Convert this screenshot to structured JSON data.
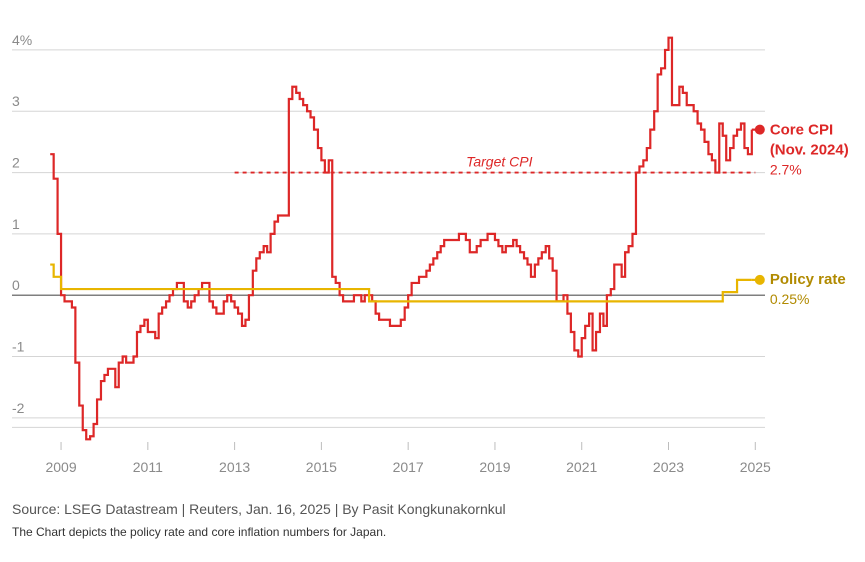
{
  "chart_data": {
    "type": "line",
    "title": "",
    "xlabel": "",
    "ylabel": "",
    "xlim": [
      2008.1,
      2025.8
    ],
    "ylim": [
      -2.5,
      4.25
    ],
    "y_ticks": [
      {
        "value": 4,
        "label": "4%"
      },
      {
        "value": 3,
        "label": "3"
      },
      {
        "value": 2,
        "label": "2"
      },
      {
        "value": 1,
        "label": "1"
      },
      {
        "value": 0,
        "label": "0"
      },
      {
        "value": -1,
        "label": "-1"
      },
      {
        "value": -2,
        "label": "-2"
      }
    ],
    "x_ticks": [
      {
        "value": 2009,
        "label": "2009"
      },
      {
        "value": 2011,
        "label": "2011"
      },
      {
        "value": 2013,
        "label": "2013"
      },
      {
        "value": 2015,
        "label": "2015"
      },
      {
        "value": 2017,
        "label": "2017"
      },
      {
        "value": 2019,
        "label": "2019"
      },
      {
        "value": 2021,
        "label": "2021"
      },
      {
        "value": 2023,
        "label": "2023"
      },
      {
        "value": 2025,
        "label": "2025"
      }
    ],
    "grid": true,
    "target": {
      "value": 2,
      "label": "Target CPI",
      "x_start": 2013.0,
      "x_end": 2025.0,
      "color": "#dd2727"
    },
    "series": [
      {
        "name": "Core CPI",
        "color": "#dd2727",
        "end_label": "Core CPI",
        "end_label_sub": "(Nov. 2024)",
        "end_value_label": "2.7%",
        "points": [
          [
            2008.75,
            2.3
          ],
          [
            2008.83,
            1.9
          ],
          [
            2008.92,
            1.0
          ],
          [
            2009.0,
            0.0
          ],
          [
            2009.08,
            -0.1
          ],
          [
            2009.25,
            -0.2
          ],
          [
            2009.33,
            -1.1
          ],
          [
            2009.42,
            -1.8
          ],
          [
            2009.5,
            -2.2
          ],
          [
            2009.58,
            -2.35
          ],
          [
            2009.67,
            -2.3
          ],
          [
            2009.75,
            -2.1
          ],
          [
            2009.83,
            -1.7
          ],
          [
            2009.92,
            -1.4
          ],
          [
            2010.0,
            -1.3
          ],
          [
            2010.08,
            -1.2
          ],
          [
            2010.25,
            -1.5
          ],
          [
            2010.33,
            -1.1
          ],
          [
            2010.42,
            -1.0
          ],
          [
            2010.5,
            -1.1
          ],
          [
            2010.67,
            -1.0
          ],
          [
            2010.75,
            -0.6
          ],
          [
            2010.83,
            -0.5
          ],
          [
            2010.92,
            -0.4
          ],
          [
            2011.0,
            -0.6
          ],
          [
            2011.17,
            -0.7
          ],
          [
            2011.25,
            -0.3
          ],
          [
            2011.33,
            -0.2
          ],
          [
            2011.42,
            -0.1
          ],
          [
            2011.5,
            0.0
          ],
          [
            2011.58,
            0.1
          ],
          [
            2011.67,
            0.2
          ],
          [
            2011.83,
            -0.1
          ],
          [
            2011.92,
            -0.2
          ],
          [
            2012.0,
            -0.1
          ],
          [
            2012.08,
            0.0
          ],
          [
            2012.17,
            0.1
          ],
          [
            2012.25,
            0.2
          ],
          [
            2012.42,
            -0.1
          ],
          [
            2012.5,
            -0.2
          ],
          [
            2012.58,
            -0.3
          ],
          [
            2012.75,
            -0.1
          ],
          [
            2012.83,
            0.0
          ],
          [
            2012.92,
            -0.1
          ],
          [
            2013.0,
            -0.2
          ],
          [
            2013.08,
            -0.3
          ],
          [
            2013.17,
            -0.5
          ],
          [
            2013.25,
            -0.4
          ],
          [
            2013.33,
            0.0
          ],
          [
            2013.42,
            0.4
          ],
          [
            2013.5,
            0.6
          ],
          [
            2013.58,
            0.7
          ],
          [
            2013.67,
            0.8
          ],
          [
            2013.75,
            0.7
          ],
          [
            2013.83,
            1.0
          ],
          [
            2013.92,
            1.2
          ],
          [
            2014.0,
            1.3
          ],
          [
            2014.08,
            1.3
          ],
          [
            2014.25,
            3.2
          ],
          [
            2014.33,
            3.4
          ],
          [
            2014.42,
            3.3
          ],
          [
            2014.5,
            3.2
          ],
          [
            2014.58,
            3.1
          ],
          [
            2014.67,
            3.0
          ],
          [
            2014.75,
            2.9
          ],
          [
            2014.83,
            2.7
          ],
          [
            2014.92,
            2.4
          ],
          [
            2015.0,
            2.2
          ],
          [
            2015.08,
            2.0
          ],
          [
            2015.17,
            2.2
          ],
          [
            2015.25,
            0.3
          ],
          [
            2015.33,
            0.2
          ],
          [
            2015.42,
            0.0
          ],
          [
            2015.5,
            -0.1
          ],
          [
            2015.75,
            0.0
          ],
          [
            2015.92,
            -0.1
          ],
          [
            2016.0,
            0.0
          ],
          [
            2016.17,
            -0.1
          ],
          [
            2016.25,
            -0.3
          ],
          [
            2016.33,
            -0.4
          ],
          [
            2016.58,
            -0.5
          ],
          [
            2016.83,
            -0.4
          ],
          [
            2016.92,
            -0.2
          ],
          [
            2017.0,
            0.0
          ],
          [
            2017.08,
            0.2
          ],
          [
            2017.25,
            0.3
          ],
          [
            2017.42,
            0.4
          ],
          [
            2017.5,
            0.5
          ],
          [
            2017.58,
            0.6
          ],
          [
            2017.67,
            0.7
          ],
          [
            2017.75,
            0.8
          ],
          [
            2017.83,
            0.9
          ],
          [
            2018.0,
            0.9
          ],
          [
            2018.17,
            1.0
          ],
          [
            2018.33,
            0.9
          ],
          [
            2018.42,
            0.7
          ],
          [
            2018.58,
            0.8
          ],
          [
            2018.67,
            0.9
          ],
          [
            2018.83,
            1.0
          ],
          [
            2019.0,
            0.9
          ],
          [
            2019.08,
            0.8
          ],
          [
            2019.17,
            0.7
          ],
          [
            2019.25,
            0.8
          ],
          [
            2019.42,
            0.9
          ],
          [
            2019.5,
            0.8
          ],
          [
            2019.58,
            0.7
          ],
          [
            2019.67,
            0.6
          ],
          [
            2019.75,
            0.5
          ],
          [
            2019.83,
            0.3
          ],
          [
            2019.92,
            0.5
          ],
          [
            2020.0,
            0.6
          ],
          [
            2020.08,
            0.7
          ],
          [
            2020.17,
            0.8
          ],
          [
            2020.25,
            0.6
          ],
          [
            2020.33,
            0.4
          ],
          [
            2020.42,
            -0.1
          ],
          [
            2020.58,
            0.0
          ],
          [
            2020.67,
            -0.3
          ],
          [
            2020.75,
            -0.6
          ],
          [
            2020.83,
            -0.9
          ],
          [
            2020.92,
            -1.0
          ],
          [
            2021.0,
            -0.7
          ],
          [
            2021.08,
            -0.5
          ],
          [
            2021.17,
            -0.3
          ],
          [
            2021.25,
            -0.9
          ],
          [
            2021.33,
            -0.6
          ],
          [
            2021.42,
            -0.3
          ],
          [
            2021.5,
            -0.5
          ],
          [
            2021.58,
            0.0
          ],
          [
            2021.67,
            0.1
          ],
          [
            2021.75,
            0.5
          ],
          [
            2021.92,
            0.3
          ],
          [
            2022.0,
            0.7
          ],
          [
            2022.08,
            0.8
          ],
          [
            2022.17,
            1.0
          ],
          [
            2022.25,
            2.0
          ],
          [
            2022.33,
            2.1
          ],
          [
            2022.42,
            2.2
          ],
          [
            2022.5,
            2.4
          ],
          [
            2022.58,
            2.7
          ],
          [
            2022.67,
            3.0
          ],
          [
            2022.75,
            3.6
          ],
          [
            2022.83,
            3.7
          ],
          [
            2022.92,
            4.0
          ],
          [
            2023.0,
            4.2
          ],
          [
            2023.08,
            3.1
          ],
          [
            2023.25,
            3.4
          ],
          [
            2023.33,
            3.3
          ],
          [
            2023.42,
            3.1
          ],
          [
            2023.58,
            3.0
          ],
          [
            2023.67,
            2.8
          ],
          [
            2023.75,
            2.7
          ],
          [
            2023.83,
            2.5
          ],
          [
            2023.92,
            2.3
          ],
          [
            2024.0,
            2.2
          ],
          [
            2024.08,
            2.0
          ],
          [
            2024.17,
            2.8
          ],
          [
            2024.25,
            2.6
          ],
          [
            2024.33,
            2.2
          ],
          [
            2024.42,
            2.4
          ],
          [
            2024.5,
            2.6
          ],
          [
            2024.58,
            2.7
          ],
          [
            2024.67,
            2.8
          ],
          [
            2024.75,
            2.4
          ],
          [
            2024.83,
            2.3
          ],
          [
            2024.92,
            2.7
          ]
        ]
      },
      {
        "name": "Policy rate",
        "color": "#e8b500",
        "end_label": "Policy rate",
        "end_value_label": "0.25%",
        "points": [
          [
            2008.75,
            0.5
          ],
          [
            2008.83,
            0.3
          ],
          [
            2008.92,
            0.3
          ],
          [
            2009.0,
            0.1
          ],
          [
            2016.1,
            0.1
          ],
          [
            2016.1,
            -0.1
          ],
          [
            2024.25,
            -0.1
          ],
          [
            2024.25,
            0.05
          ],
          [
            2024.58,
            0.05
          ],
          [
            2024.58,
            0.25
          ],
          [
            2024.92,
            0.25
          ]
        ]
      }
    ]
  },
  "footer": {
    "source": "Source: LSEG Datastream | Reuters, Jan. 16, 2025 | By Pasit Kongkunakornkul",
    "note": "The Chart depicts the policy rate and core inflation numbers for Japan."
  }
}
